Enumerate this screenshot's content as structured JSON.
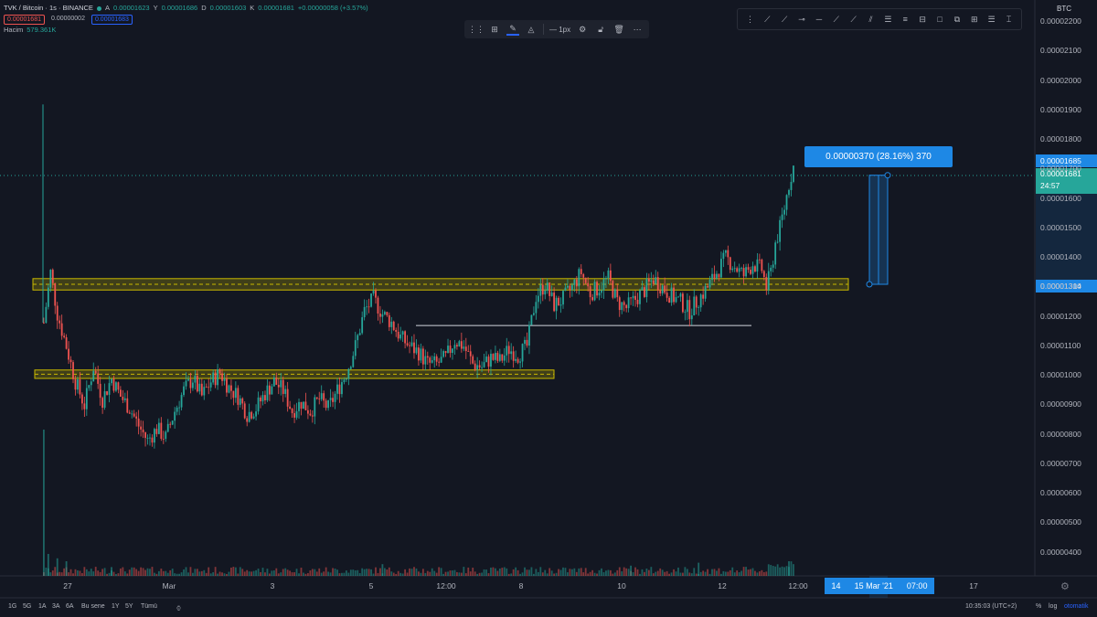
{
  "legend": {
    "symbol": "TVK / Bitcoin · 1s · BINANCE",
    "open_label": "A",
    "open": "0.00001623",
    "high_label": "Y",
    "high": "0.00001686",
    "low_label": "D",
    "low": "0.00001603",
    "close_label": "K",
    "close": "0.00001681",
    "change": "+0.00000058 (+3.57%)",
    "bid": "0.00001681",
    "spread": "0.00000002",
    "ask": "0.00001683",
    "volume_label": "Hacim",
    "volume": "579.361K"
  },
  "toolbar": {
    "width_label": "1px"
  },
  "axis": {
    "currency": "BTC"
  },
  "measure": {
    "label": "0.00000370 (28.16%) 370"
  },
  "price_tags": {
    "top": "0.00001685",
    "last": "0.00001681",
    "countdown": "24:57",
    "bottom": "0.00001314"
  },
  "time_range": {
    "left": "14",
    "mid": "15 Mar '21",
    "right": "07:00"
  },
  "timeframes": [
    "1G",
    "5G",
    "1A",
    "3A",
    "6A",
    "Bu sene",
    "1Y",
    "5Y",
    "Tümü"
  ],
  "status": {
    "clock": "10:35:03 (UTC+2)",
    "percent": "%",
    "log": "log",
    "auto": "otomatik"
  },
  "colors": {
    "up": "#26a69a",
    "down": "#ef5350",
    "accent": "#1e88e5",
    "zone": "#c9b800",
    "bg": "#131722"
  },
  "icons": {
    "settings": "gear-icon"
  },
  "chart_data": {
    "type": "candlestick",
    "title": "TVK / Bitcoin · 1s · BINANCE",
    "ylabel": "BTC",
    "ylim": [
      3.7e-06,
      2.23e-05
    ],
    "yticks": [
      "0.00002200",
      "0.00002100",
      "0.00002000",
      "0.00001900",
      "0.00001800",
      "0.00001700",
      "0.00001600",
      "0.00001500",
      "0.00001400",
      "0.00001300",
      "0.00001200",
      "0.00001100",
      "0.00001000",
      "0.00000900",
      "0.00000800",
      "0.00000700",
      "0.00000600",
      "0.00000500",
      "0.00000400"
    ],
    "xticks": [
      "27",
      "Mar",
      "3",
      "5",
      "12:00",
      "8",
      "10",
      "12",
      "12:00",
      "14",
      "15 Mar '21",
      "07:00",
      "17"
    ],
    "price_path": [
      [
        0,
        1.18e-05
      ],
      [
        3,
        1.35e-05
      ],
      [
        6,
        1.21e-05
      ],
      [
        10,
        1.1e-05
      ],
      [
        14,
        9.8e-06
      ],
      [
        18,
        9e-06
      ],
      [
        22,
        1.03e-05
      ],
      [
        26,
        9.2e-06
      ],
      [
        30,
        9.9e-06
      ],
      [
        34,
        9.3e-06
      ],
      [
        38,
        8.9e-06
      ],
      [
        42,
        8.3e-06
      ],
      [
        46,
        7.8e-06
      ],
      [
        50,
        8.2e-06
      ],
      [
        54,
        7.9e-06
      ],
      [
        58,
        8.8e-06
      ],
      [
        62,
        9.5e-06
      ],
      [
        66,
        9.9e-06
      ],
      [
        70,
        9.3e-06
      ],
      [
        74,
        9.8e-06
      ],
      [
        78,
        1.01e-05
      ],
      [
        82,
        9.6e-06
      ],
      [
        86,
        9.3e-06
      ],
      [
        90,
        8.7e-06
      ],
      [
        94,
        8.9e-06
      ],
      [
        98,
        9.4e-06
      ],
      [
        102,
        9.8e-06
      ],
      [
        106,
        9.5e-06
      ],
      [
        110,
        8.8e-06
      ],
      [
        114,
        9.1e-06
      ],
      [
        118,
        8.8e-06
      ],
      [
        122,
        9.2e-06
      ],
      [
        126,
        8.9e-06
      ],
      [
        130,
        9.5e-06
      ],
      [
        134,
        1.01e-05
      ],
      [
        138,
        1.1e-05
      ],
      [
        142,
        1.22e-05
      ],
      [
        146,
        1.26e-05
      ],
      [
        150,
        1.21e-05
      ],
      [
        154,
        1.18e-05
      ],
      [
        158,
        1.13e-05
      ],
      [
        162,
        1.1e-05
      ],
      [
        166,
        1.08e-05
      ],
      [
        170,
        1.04e-05
      ],
      [
        174,
        1.04e-05
      ],
      [
        178,
        1.06e-05
      ],
      [
        182,
        1.12e-05
      ],
      [
        186,
        1.1e-05
      ],
      [
        190,
        1.04e-05
      ],
      [
        194,
        1.03e-05
      ],
      [
        198,
        1.06e-05
      ],
      [
        202,
        1.05e-05
      ],
      [
        206,
        1.09e-05
      ],
      [
        210,
        1.07e-05
      ],
      [
        214,
        1.1e-05
      ],
      [
        218,
        1.27e-05
      ],
      [
        222,
        1.31e-05
      ],
      [
        226,
        1.24e-05
      ],
      [
        230,
        1.26e-05
      ],
      [
        234,
        1.3e-05
      ],
      [
        238,
        1.35e-05
      ],
      [
        242,
        1.28e-05
      ],
      [
        246,
        1.3e-05
      ],
      [
        250,
        1.33e-05
      ],
      [
        254,
        1.25e-05
      ],
      [
        258,
        1.23e-05
      ],
      [
        262,
        1.26e-05
      ],
      [
        266,
        1.29e-05
      ],
      [
        270,
        1.33e-05
      ],
      [
        274,
        1.3e-05
      ],
      [
        278,
        1.27e-05
      ],
      [
        282,
        1.25e-05
      ],
      [
        286,
        1.22e-05
      ],
      [
        290,
        1.26e-05
      ],
      [
        294,
        1.3e-05
      ],
      [
        298,
        1.35e-05
      ],
      [
        302,
        1.4e-05
      ],
      [
        306,
        1.37e-05
      ],
      [
        310,
        1.34e-05
      ],
      [
        314,
        1.38e-05
      ],
      [
        318,
        1.36e-05
      ],
      [
        320,
        1.3e-05
      ],
      [
        322,
        1.35e-05
      ],
      [
        324,
        1.45e-05
      ],
      [
        326,
        1.5e-05
      ],
      [
        328,
        1.57e-05
      ],
      [
        330,
        1.65e-05
      ],
      [
        332,
        1.71e-05
      ]
    ],
    "volume_spikes": [
      [
        0,
        1.0
      ],
      [
        2,
        0.15
      ],
      [
        6,
        0.12
      ],
      [
        10,
        0.1
      ],
      [
        30,
        0.06
      ],
      [
        150,
        0.08
      ],
      [
        260,
        0.07
      ],
      [
        290,
        0.09
      ],
      [
        330,
        0.1
      ]
    ],
    "zones": [
      {
        "low": 1.3e-05,
        "high": 1.32e-05
      },
      {
        "low": 1e-05,
        "high": 1.01e-05
      }
    ],
    "support_line": 1.17e-05,
    "measure": {
      "from": 1.31e-05,
      "to": 1.68e-05
    }
  }
}
